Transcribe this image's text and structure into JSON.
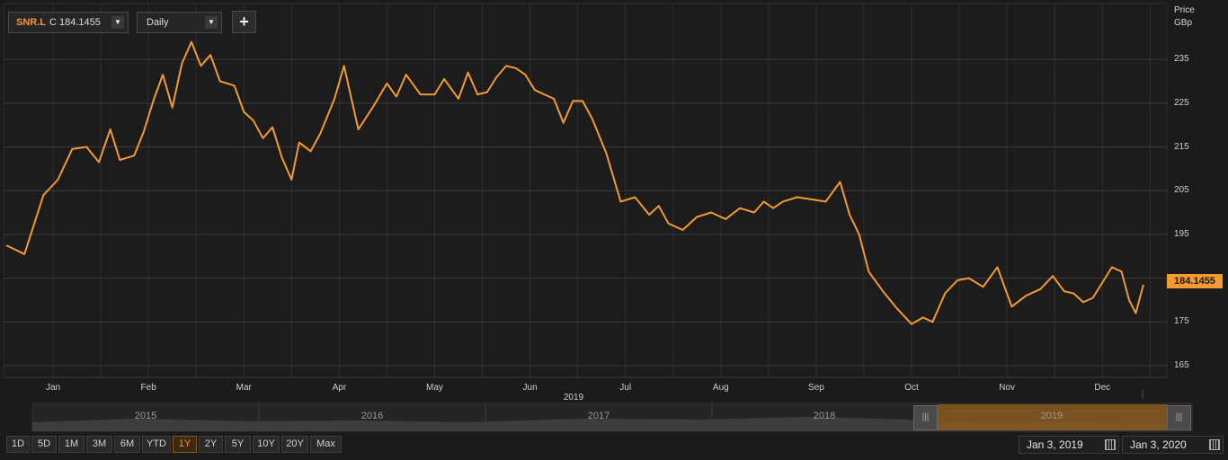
{
  "toolbar": {
    "symbol": "SNR.L",
    "close_prefix": "C",
    "close_value": "184.1455",
    "interval": "Daily",
    "add_label": "+"
  },
  "colors": {
    "line": "#f39a30",
    "background": "#1b1b1b",
    "grid": "#3a3a3a",
    "navigator_sel": "#8a5a22"
  },
  "axis": {
    "ylabel_line1": "Price",
    "ylabel_line2": "GBp",
    "year_label": "2019",
    "current_price_tag": "184.1455"
  },
  "navigator": {
    "years": [
      "2015",
      "2016",
      "2017",
      "2018",
      "2019"
    ]
  },
  "range_buttons": [
    "1D",
    "5D",
    "1M",
    "3M",
    "6M",
    "YTD",
    "1Y",
    "2Y",
    "5Y",
    "10Y",
    "20Y",
    "Max"
  ],
  "active_range": "1Y",
  "date_range": {
    "from": "Jan 3, 2019",
    "to": "Jan 3, 2020"
  },
  "chart_data": {
    "type": "line",
    "title": "",
    "xlabel": "2019",
    "ylabel": "Price GBp",
    "ylim": [
      161,
      247
    ],
    "grid": true,
    "y_ticks": [
      165,
      175,
      185,
      195,
      205,
      215,
      225,
      235
    ],
    "x_tick_labels": [
      "Jan",
      "Feb",
      "Mar",
      "Apr",
      "May",
      "Jun",
      "Jul",
      "Aug",
      "Sep",
      "Oct",
      "Nov",
      "Dec"
    ],
    "series": [
      {
        "name": "SNR.L",
        "x": [
          0.01,
          0.2,
          0.4,
          0.55,
          0.7,
          0.85,
          0.98,
          1.1,
          1.2,
          1.35,
          1.45,
          1.55,
          1.65,
          1.75,
          1.85,
          1.95,
          2.05,
          2.15,
          2.25,
          2.4,
          2.5,
          2.6,
          2.7,
          2.8,
          2.9,
          3.0,
          3.08,
          3.2,
          3.3,
          3.45,
          3.55,
          3.7,
          3.85,
          4.0,
          4.1,
          4.2,
          4.35,
          4.5,
          4.6,
          4.75,
          4.85,
          4.95,
          5.05,
          5.15,
          5.25,
          5.35,
          5.45,
          5.55,
          5.65,
          5.75,
          5.85,
          5.95,
          6.05,
          6.15,
          6.3,
          6.45,
          6.6,
          6.75,
          6.85,
          6.95,
          7.1,
          7.25,
          7.4,
          7.55,
          7.7,
          7.85,
          7.95,
          8.05,
          8.15,
          8.3,
          8.45,
          8.6,
          8.75,
          8.85,
          8.95,
          9.05,
          9.2,
          9.35,
          9.5,
          9.62,
          9.72,
          9.85,
          9.98,
          10.1,
          10.25,
          10.4,
          10.55,
          10.7,
          10.85,
          10.98,
          11.1,
          11.2,
          11.3,
          11.4,
          11.5,
          11.6,
          11.7,
          11.78,
          11.85,
          11.93
        ],
        "values": [
          192.5,
          190.5,
          204,
          207.5,
          214.5,
          215,
          211.5,
          219,
          212,
          213,
          218.5,
          225.5,
          231.5,
          224,
          234,
          239,
          233.5,
          236,
          230,
          229,
          223,
          221,
          217,
          219.5,
          212.5,
          207.5,
          216,
          214,
          218,
          226,
          233.5,
          219,
          224,
          229.5,
          226.5,
          231.5,
          227,
          227,
          230.5,
          226,
          232,
          227,
          227.5,
          231,
          233.5,
          233,
          231.5,
          228,
          227,
          226,
          220.5,
          225.5,
          225.5,
          221.5,
          213.5,
          202.5,
          203.5,
          199.5,
          201.5,
          197.5,
          196,
          199,
          200,
          198.5,
          201,
          200,
          202.5,
          201,
          202.5,
          203.5,
          203,
          202.5,
          207,
          199.5,
          195,
          186.5,
          182,
          178,
          174.5,
          176,
          175,
          181.5,
          184.5,
          185,
          183,
          187.5,
          178.5,
          181,
          182.5,
          185.5,
          182,
          181.5,
          179.5,
          180.5,
          184,
          187.5,
          186.5,
          180,
          177,
          183.5
        ]
      }
    ]
  }
}
